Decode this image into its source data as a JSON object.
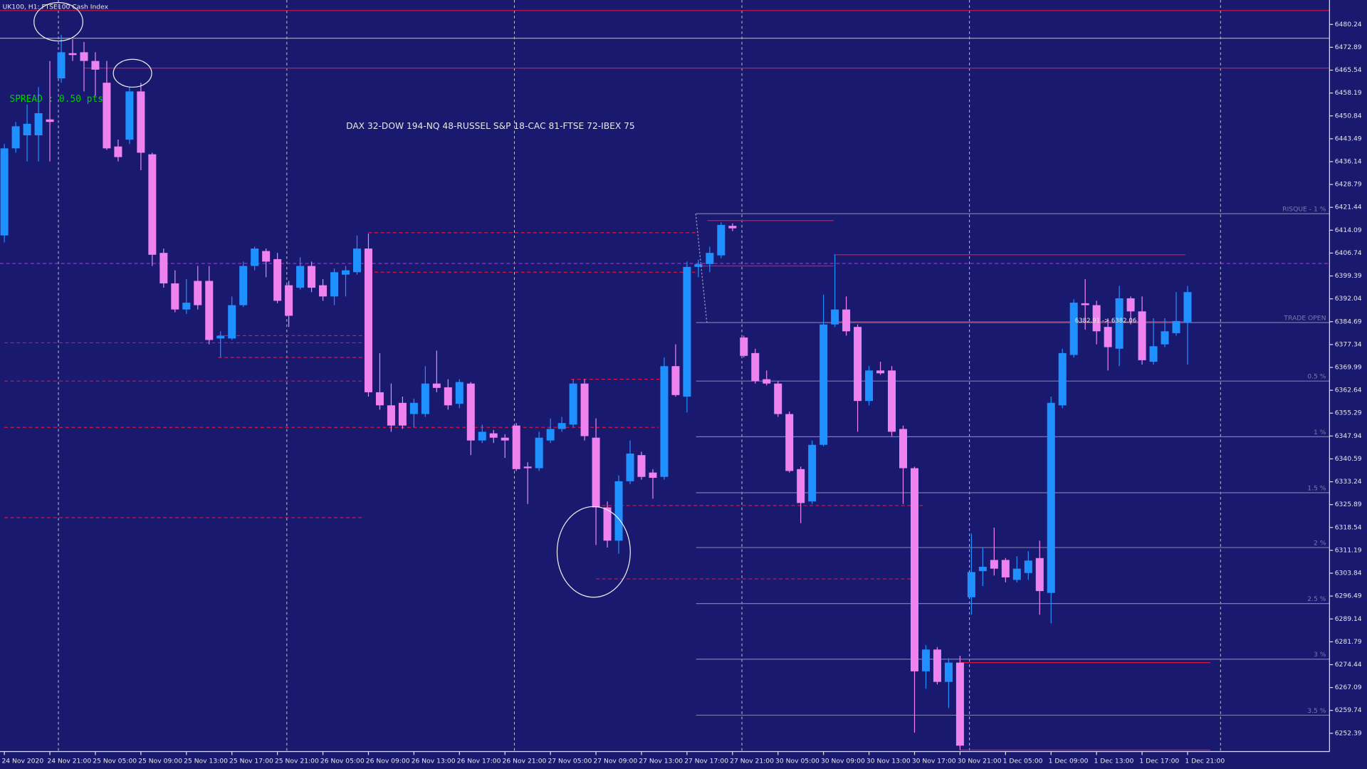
{
  "chart_data": {
    "type": "candlestick",
    "title": "UK100, H1:  FTSE100 Cash Index",
    "annotations": [
      "SPREAD : 0.50 pts",
      "DAX 32-DOW 194-NQ 48-RUSSEL S&P 18-CAC 81-FTSE 72-IBEX 75",
      "6382.91 -> 6382.06"
    ],
    "up_color": "#1e90ff",
    "down_color": "#ee82ee",
    "categories": [
      "24 Nov 2020",
      null,
      null,
      null,
      "24 Nov 21:00",
      null,
      null,
      null,
      "25 Nov 05:00",
      null,
      null,
      null,
      "25 Nov 09:00",
      null,
      null,
      null,
      "25 Nov 13:00",
      null,
      null,
      null,
      "25 Nov 17:00",
      null,
      null,
      null,
      "25 Nov 21:00",
      null,
      null,
      null,
      "26 Nov 05:00",
      null,
      null,
      null,
      "26 Nov 09:00",
      null,
      null,
      null,
      "26 Nov 13:00",
      null,
      null,
      null,
      "26 Nov 17:00",
      null,
      null,
      null,
      "26 Nov 21:00",
      null,
      null,
      null,
      "27 Nov 05:00",
      null,
      null,
      null,
      "27 Nov 09:00",
      null,
      null,
      null,
      "27 Nov 13:00",
      null,
      null,
      null,
      "27 Nov 17:00",
      null,
      null,
      null,
      "27 Nov 21:00",
      null,
      null,
      null,
      "30 Nov 05:00",
      null,
      null,
      null,
      "30 Nov 09:00",
      null,
      null,
      null,
      "30 Nov 13:00",
      null,
      null,
      null,
      "30 Nov 17:00",
      null,
      null,
      null,
      "30 Nov 21:00",
      null,
      null,
      null,
      "1 Dec 05:00",
      null,
      null,
      null,
      "1 Dec 09:00",
      null,
      null,
      null,
      "1 Dec 13:00",
      null,
      null,
      null,
      "1 Dec 17:00",
      null,
      null,
      null,
      "1 Dec 21:00"
    ],
    "open": [
      6412.4,
      6440.4,
      6444.6,
      6444.6,
      6449.7,
      6462.9,
      6471.0,
      6471.3,
      6468.5,
      6461.5,
      6441.0,
      6443.2,
      6458.7,
      6438.5,
      6406.8,
      6397.0,
      6388.6,
      6397.8,
      6397.8,
      6379.3,
      6379.3,
      6390.0,
      6402.6,
      6407.4,
      6404.8,
      6396.4,
      6395.6,
      6402.6,
      6396.4,
      6392.8,
      6399.8,
      6400.6,
      6408.2,
      6362.0,
      6357.8,
      6358.6,
      6355.0,
      6355.0,
      6364.8,
      6363.6,
      6358.3,
      6364.8,
      6346.5,
      6348.8,
      6347.4,
      6351.3,
      6338.1,
      6337.6,
      6346.5,
      6350.2,
      6351.6,
      6364.8,
      6347.4,
      6325.0,
      6314.3,
      6333.4,
      6341.8,
      6336.2,
      6334.8,
      6370.4,
      6360.6,
      6402.3,
      6403.2,
      6406.0,
      6415.5,
      6379.6,
      6374.6,
      6366.2,
      6364.8,
      6355.0,
      6337.3,
      6326.9,
      6345.1,
      6383.8,
      6388.6,
      6383.0,
      6359.2,
      6369.0,
      6369.0,
      6350.2,
      6337.6,
      6272.3,
      6279.3,
      6268.9,
      6275.1,
      6296.1,
      6304.5,
      6308.1,
      6308.1,
      6301.7,
      6303.9,
      6308.7,
      6297.5,
      6357.8,
      6374.0,
      6390.6,
      6390.0,
      6383.0,
      6376.0,
      6392.2,
      6388.0,
      6371.8,
      6377.4,
      6381.0,
      6384.4
    ],
    "high": [
      6441.8,
      6448.9,
      6454.5,
      6460.1,
      6468.5,
      6476.9,
      6475.5,
      6474.6,
      6471.3,
      6468.5,
      6443.2,
      6460.1,
      6461.5,
      6439.0,
      6408.2,
      6401.2,
      6398.4,
      6402.6,
      6402.6,
      6381.6,
      6392.8,
      6404.0,
      6408.8,
      6408.2,
      6406.8,
      6397.8,
      6405.4,
      6404.0,
      6398.4,
      6401.8,
      6402.6,
      6412.4,
      6413.0,
      6374.6,
      6364.8,
      6360.6,
      6360.0,
      6370.4,
      6375.4,
      6366.2,
      6366.2,
      6365.3,
      6351.6,
      6349.9,
      6348.5,
      6352.1,
      6339.5,
      6349.3,
      6353.6,
      6354.1,
      6366.2,
      6366.2,
      6353.6,
      6326.9,
      6335.3,
      6346.5,
      6342.9,
      6337.3,
      6373.2,
      6377.4,
      6404.0,
      6404.6,
      6408.8,
      6416.6,
      6416.3,
      6380.2,
      6376.0,
      6369.0,
      6365.6,
      6355.8,
      6338.1,
      6346.5,
      6393.4,
      6406.2,
      6392.8,
      6383.8,
      6370.4,
      6371.8,
      6370.4,
      6351.3,
      6338.1,
      6280.7,
      6280.1,
      6276.5,
      6277.3,
      6316.6,
      6312.1,
      6318.5,
      6308.7,
      6309.3,
      6310.9,
      6314.3,
      6360.6,
      6376.0,
      6391.9,
      6398.4,
      6391.4,
      6385.8,
      6396.2,
      6392.8,
      6392.8,
      6385.8,
      6385.8,
      6394.2,
      6396.2
    ],
    "low": [
      6410.2,
      6439.0,
      6436.2,
      6436.2,
      6436.2,
      6461.5,
      6468.5,
      6458.7,
      6457.3,
      6439.9,
      6436.2,
      6441.8,
      6433.4,
      6402.6,
      6395.6,
      6387.7,
      6387.2,
      6388.6,
      6377.4,
      6373.2,
      6378.8,
      6389.4,
      6401.2,
      6399.0,
      6390.6,
      6383.0,
      6395.0,
      6394.2,
      6391.4,
      6390.0,
      6392.8,
      6399.8,
      6360.6,
      6356.4,
      6349.3,
      6350.2,
      6350.7,
      6354.1,
      6362.0,
      6356.4,
      6356.9,
      6341.8,
      6345.7,
      6345.7,
      6340.9,
      6336.7,
      6326.1,
      6336.7,
      6345.7,
      6349.3,
      6350.7,
      6346.5,
      6312.9,
      6312.1,
      6310.1,
      6332.5,
      6333.9,
      6327.8,
      6333.9,
      6360.6,
      6355.5,
      6399.0,
      6400.6,
      6405.1,
      6413.8,
      6373.2,
      6364.8,
      6364.2,
      6354.1,
      6336.2,
      6319.9,
      6326.1,
      6344.6,
      6383.0,
      6380.2,
      6349.3,
      6357.8,
      6367.6,
      6347.9,
      6326.1,
      6252.6,
      6266.7,
      6268.1,
      6260.5,
      6247.0,
      6290.5,
      6299.7,
      6303.1,
      6300.9,
      6300.9,
      6301.7,
      6290.5,
      6287.7,
      6356.9,
      6373.2,
      6382.1,
      6377.4,
      6369.0,
      6370.4,
      6383.8,
      6370.9,
      6370.9,
      6376.5,
      6380.2,
      6370.9
    ],
    "close": [
      6440.4,
      6447.5,
      6448.3,
      6451.7,
      6448.9,
      6471.3,
      6470.4,
      6468.5,
      6465.7,
      6440.4,
      6437.6,
      6458.7,
      6439.0,
      6406.2,
      6397.0,
      6388.6,
      6390.8,
      6390.0,
      6378.8,
      6380.2,
      6390.0,
      6402.6,
      6408.2,
      6404.0,
      6391.4,
      6386.6,
      6402.6,
      6395.6,
      6392.8,
      6400.6,
      6401.2,
      6408.2,
      6362.0,
      6357.8,
      6351.3,
      6351.3,
      6358.6,
      6364.8,
      6363.4,
      6357.8,
      6365.3,
      6346.5,
      6349.3,
      6347.4,
      6346.5,
      6337.3,
      6337.6,
      6347.4,
      6350.2,
      6352.1,
      6364.8,
      6347.9,
      6325.0,
      6314.3,
      6333.4,
      6342.3,
      6334.8,
      6334.5,
      6370.4,
      6361.1,
      6402.3,
      6403.2,
      6406.8,
      6415.8,
      6414.7,
      6373.7,
      6365.6,
      6364.8,
      6355.0,
      6336.7,
      6326.4,
      6345.1,
      6383.8,
      6388.6,
      6381.6,
      6359.2,
      6369.0,
      6368.1,
      6349.3,
      6337.6,
      6272.3,
      6279.3,
      6268.9,
      6275.1,
      6248.4,
      6304.2,
      6305.9,
      6305.3,
      6302.5,
      6305.3,
      6307.9,
      6298.1,
      6358.6,
      6374.6,
      6390.8,
      6390.0,
      6381.6,
      6376.5,
      6392.2,
      6388.0,
      6372.3,
      6376.8,
      6381.6,
      6384.9,
      6394.2
    ],
    "ylim": [
      6246.51,
      6488.09
    ],
    "yticks": [
      6252.39,
      6259.74,
      6267.09,
      6274.44,
      6281.79,
      6289.14,
      6296.49,
      6303.84,
      6311.19,
      6318.54,
      6325.89,
      6333.24,
      6340.59,
      6347.94,
      6355.29,
      6362.64,
      6369.99,
      6377.34,
      6384.69,
      6392.04,
      6399.39,
      6406.74,
      6414.09,
      6421.44,
      6428.79,
      6436.14,
      6443.49,
      6450.84,
      6458.19,
      6465.54,
      6472.89,
      6480.24
    ],
    "levels": [
      {
        "value": 6484.7,
        "color": "#dc143c"
      },
      {
        "value": 6475.8,
        "color": "#c8b464"
      },
      {
        "value": 6466.2,
        "color": "#dc143c",
        "from": 7
      },
      {
        "value": 6403.4,
        "color": "#9932cc",
        "dash": true
      },
      {
        "value": 6419.4,
        "color": "#7a7aa8",
        "from": 60.8,
        "label": "RISQUE - 1 %"
      },
      {
        "value": 6384.4,
        "color": "#7a7aa8",
        "from": 60.8,
        "label": "TRADE OPEN"
      },
      {
        "value": 6365.6,
        "color": "#7a7aa8",
        "from": 60.8,
        "label": "0.5 %"
      },
      {
        "value": 6347.7,
        "color": "#7a7aa8",
        "from": 60.8,
        "label": "1 %"
      },
      {
        "value": 6329.7,
        "color": "#7a7aa8",
        "from": 60.8,
        "label": "1.5 %"
      },
      {
        "value": 6312.1,
        "color": "#7a7aa8",
        "from": 60.8,
        "label": "2 %"
      },
      {
        "value": 6294.1,
        "color": "#7a7aa8",
        "from": 60.8,
        "label": "2.5 %"
      },
      {
        "value": 6276.2,
        "color": "#7a7aa8",
        "from": 60.8,
        "label": "3 %"
      },
      {
        "value": 6258.2,
        "color": "#7a7aa8",
        "from": 60.8,
        "label": "3.5 %"
      },
      {
        "value": 6384.7,
        "color": "#dc143c",
        "from": 73,
        "to": 104
      },
      {
        "value": 6417.2,
        "color": "#dc143c",
        "from": 61.8,
        "to": 72.9
      },
      {
        "value": 6402.6,
        "color": "#dc143c",
        "from": 60.8,
        "to": 72.9
      },
      {
        "value": 6406.2,
        "color": "#dc143c",
        "from": 72.9,
        "to": 103.8
      },
      {
        "value": 6275.1,
        "color": "#dc143c",
        "from": 84,
        "to": 106
      },
      {
        "value": 6247.0,
        "color": "#dc143c",
        "from": 84,
        "to": 106
      },
      {
        "value": 6413.3,
        "color": "#dc143c",
        "dash": true,
        "from": 32,
        "to": 61
      },
      {
        "value": 6400.6,
        "color": "#dc143c",
        "dash": true,
        "from": 32,
        "to": 61
      },
      {
        "value": 6377.9,
        "color": "#dc143c",
        "dash": true,
        "from": 0,
        "to": 31.6
      },
      {
        "value": 6373.2,
        "color": "#dc143c",
        "dash": true,
        "from": 18.8,
        "to": 31.6
      },
      {
        "value": 6380.2,
        "color": "#dc143c",
        "dash": true,
        "from": 18.8,
        "to": 31.6
      },
      {
        "value": 6365.6,
        "color": "#dc143c",
        "dash": true,
        "from": 0,
        "to": 31.6
      },
      {
        "value": 6366.2,
        "color": "#dc143c",
        "dash": true,
        "from": 49.8,
        "to": 57.9
      },
      {
        "value": 6350.7,
        "color": "#dc143c",
        "dash": true,
        "from": 0,
        "to": 57.5
      },
      {
        "value": 6321.7,
        "color": "#dc143c",
        "dash": true,
        "from": 0,
        "to": 31.6
      },
      {
        "value": 6325.6,
        "color": "#dc143c",
        "dash": true,
        "from": 52,
        "to": 80.8
      },
      {
        "value": 6302.0,
        "color": "#dc143c",
        "dash": true,
        "from": 52,
        "to": 80
      }
    ]
  }
}
